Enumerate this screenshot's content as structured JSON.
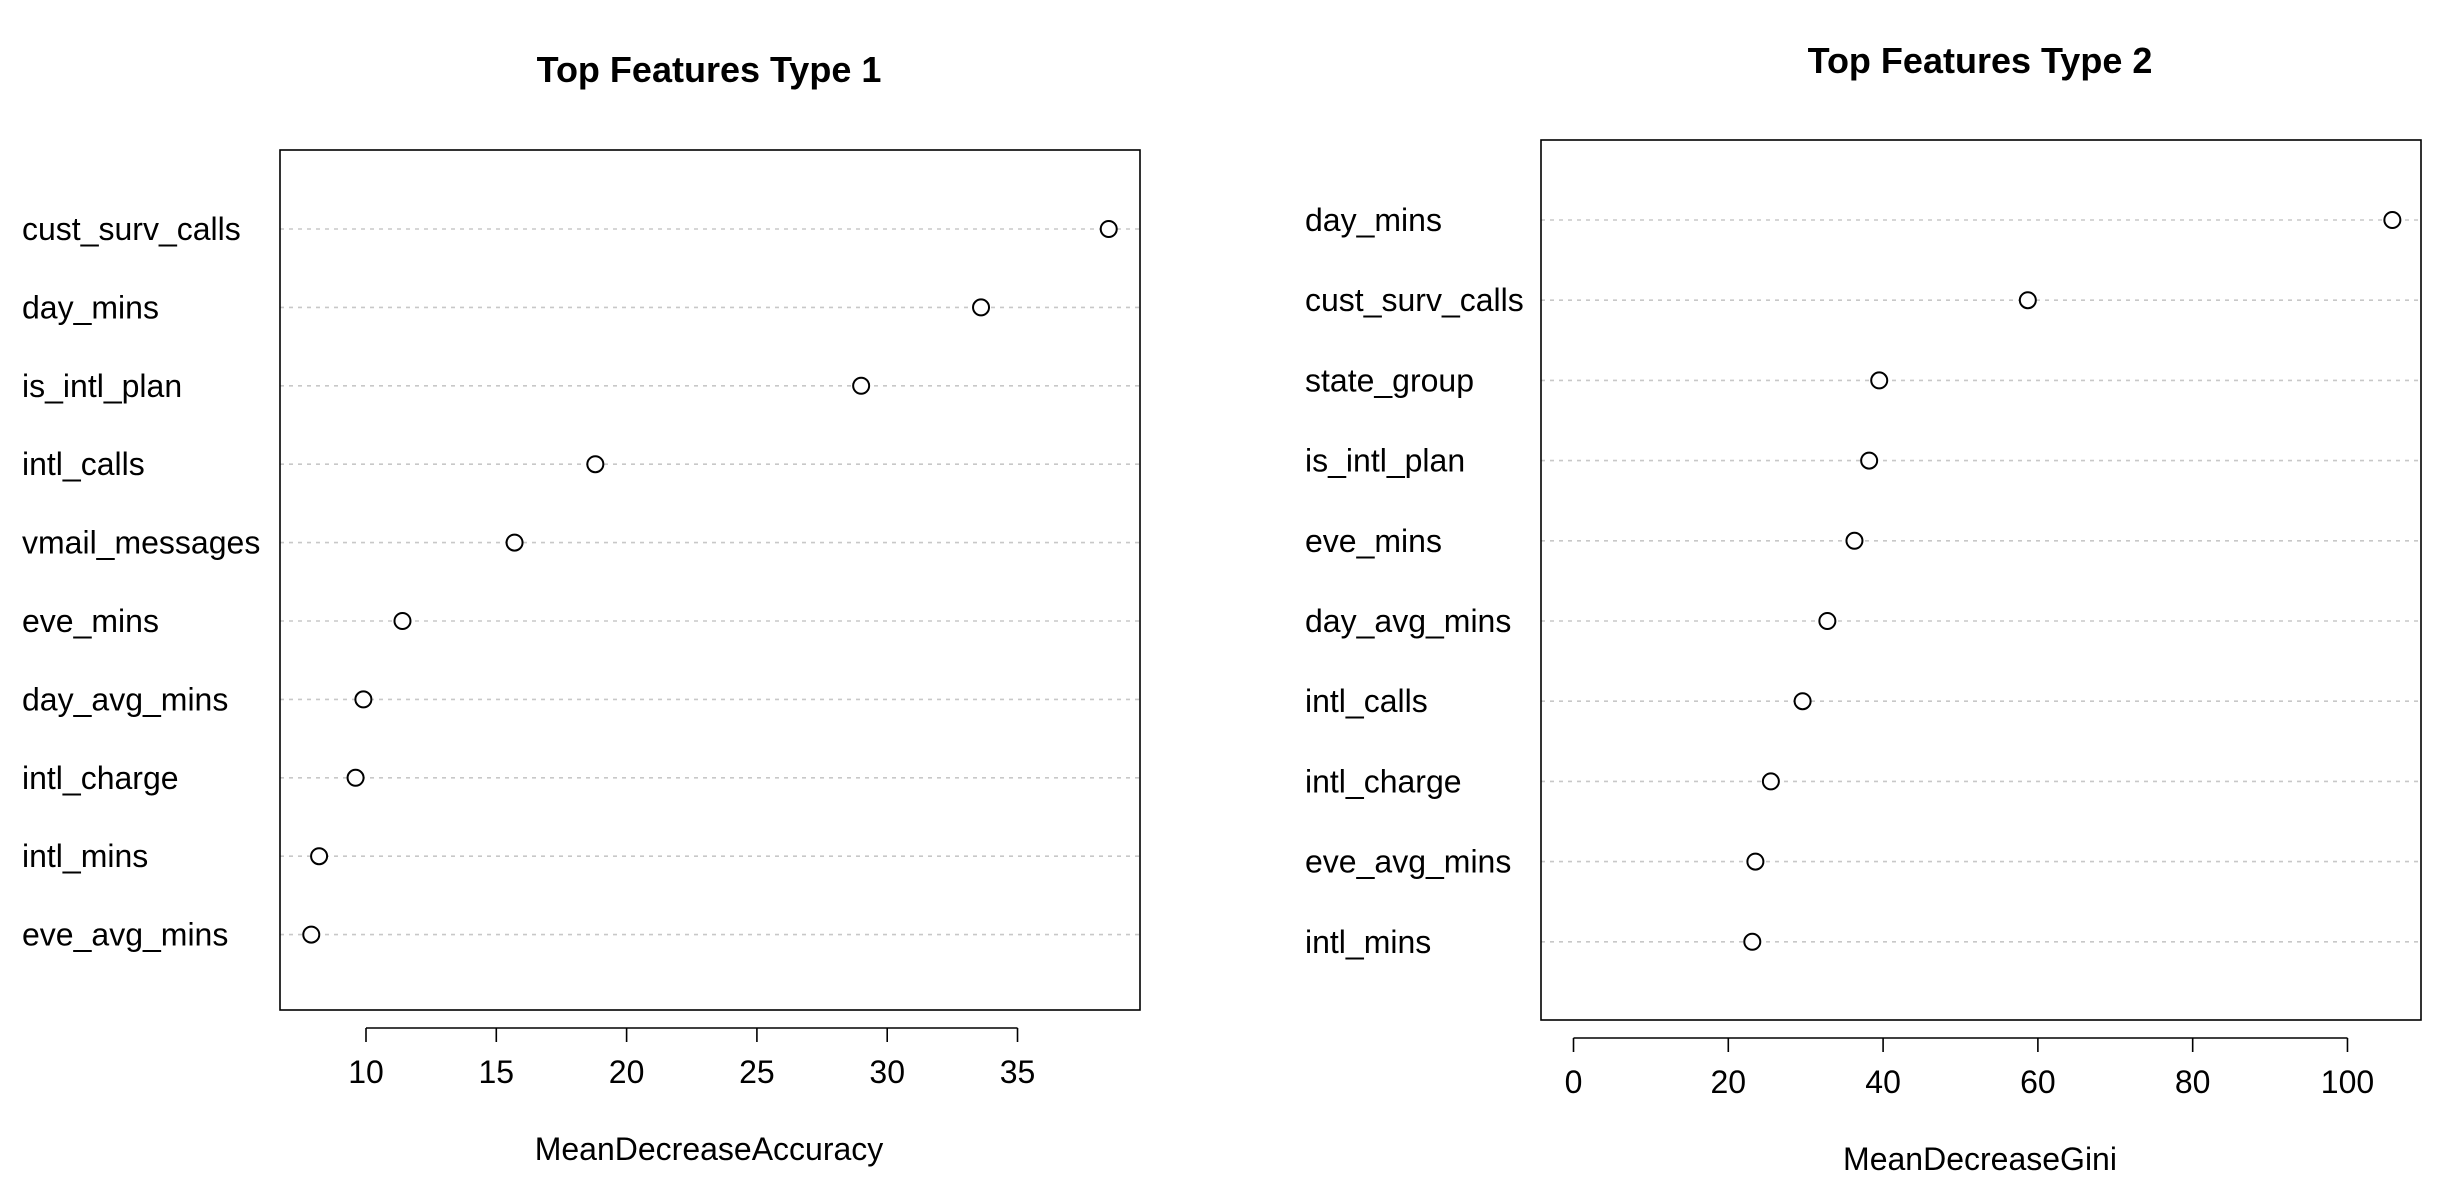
{
  "chart_data": [
    {
      "type": "scatter",
      "title": "Top Features Type 1",
      "xlabel": "MeanDecreaseAccuracy",
      "ylabel": "",
      "categories": [
        "cust_surv_calls",
        "day_mins",
        "is_intl_plan",
        "intl_calls",
        "vmail_messages",
        "eve_mins",
        "day_avg_mins",
        "intl_charge",
        "intl_mins",
        "eve_avg_mins"
      ],
      "values": [
        38.5,
        33.6,
        29.0,
        18.8,
        15.7,
        11.4,
        9.9,
        9.6,
        8.2,
        7.9
      ],
      "xlim": [
        6.7,
        39.7
      ],
      "xticks": [
        10,
        15,
        20,
        25,
        30,
        35
      ],
      "grid": "dotted horizontal guides",
      "legend": "none"
    },
    {
      "type": "scatter",
      "title": "Top Features Type 2",
      "xlabel": "MeanDecreaseGini",
      "ylabel": "",
      "categories": [
        "day_mins",
        "cust_surv_calls",
        "state_group",
        "is_intl_plan",
        "eve_mins",
        "day_avg_mins",
        "intl_calls",
        "intl_charge",
        "eve_avg_mins",
        "intl_mins"
      ],
      "values": [
        105.8,
        58.7,
        39.5,
        38.2,
        36.3,
        32.8,
        29.6,
        25.5,
        23.5,
        23.1
      ],
      "xlim": [
        -4.2,
        109.5
      ],
      "xticks": [
        0,
        20,
        40,
        60,
        80,
        100
      ],
      "grid": "dotted horizontal guides",
      "legend": "none"
    }
  ]
}
